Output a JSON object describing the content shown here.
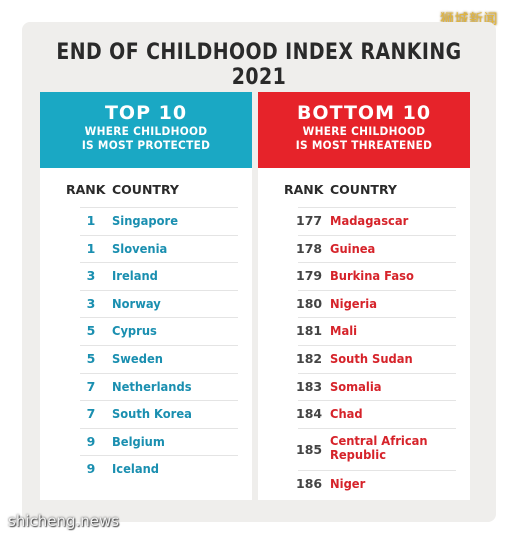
{
  "watermark_top": "狮城新闻",
  "watermark_bottom": "shicheng.news",
  "title": "END OF CHILDHOOD INDEX RANKING 2021",
  "top10": {
    "heading": "TOP 10",
    "subheading_line1": "WHERE CHILDHOOD",
    "subheading_line2": "IS MOST PROTECTED",
    "col_rank": "RANK",
    "col_country": "COUNTRY",
    "rows": [
      {
        "rank": "1",
        "country": "Singapore"
      },
      {
        "rank": "1",
        "country": "Slovenia"
      },
      {
        "rank": "3",
        "country": "Ireland"
      },
      {
        "rank": "3",
        "country": "Norway"
      },
      {
        "rank": "5",
        "country": "Cyprus"
      },
      {
        "rank": "5",
        "country": "Sweden"
      },
      {
        "rank": "7",
        "country": "Netherlands"
      },
      {
        "rank": "7",
        "country": "South Korea"
      },
      {
        "rank": "9",
        "country": "Belgium"
      },
      {
        "rank": "9",
        "country": "Iceland"
      }
    ],
    "accent_color": "#1aa8c4"
  },
  "bottom10": {
    "heading": "BOTTOM 10",
    "subheading_line1": "WHERE CHILDHOOD",
    "subheading_line2": "IS MOST THREATENED",
    "col_rank": "RANK",
    "col_country": "COUNTRY",
    "rows": [
      {
        "rank": "177",
        "country": "Madagascar"
      },
      {
        "rank": "178",
        "country": "Guinea"
      },
      {
        "rank": "179",
        "country": "Burkina Faso"
      },
      {
        "rank": "180",
        "country": "Nigeria"
      },
      {
        "rank": "181",
        "country": "Mali"
      },
      {
        "rank": "182",
        "country": "South Sudan"
      },
      {
        "rank": "183",
        "country": "Somalia"
      },
      {
        "rank": "184",
        "country": "Chad"
      },
      {
        "rank": "185",
        "country": "Central African Republic"
      },
      {
        "rank": "186",
        "country": "Niger"
      }
    ],
    "accent_color": "#e6232a"
  }
}
